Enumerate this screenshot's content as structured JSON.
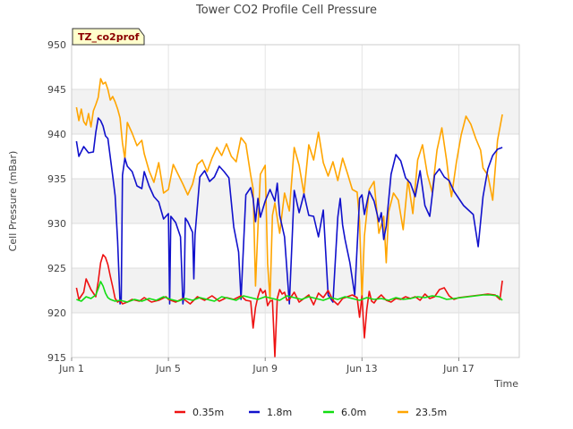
{
  "chart_data": {
    "type": "line",
    "title": "Tower CO2 Profile Cell Pressure",
    "xlabel": "Time",
    "ylabel": "Cell Pressure (mBar)",
    "ylim": [
      915,
      950
    ],
    "xlim": [
      0,
      18.5
    ],
    "yticks": [
      915,
      920,
      925,
      930,
      935,
      940,
      945,
      950
    ],
    "xticks": [
      {
        "x": 0,
        "label": "Jun 1"
      },
      {
        "x": 4,
        "label": "Jun 5"
      },
      {
        "x": 8,
        "label": "Jun 9"
      },
      {
        "x": 12,
        "label": "Jun 13"
      },
      {
        "x": 16,
        "label": "Jun 17"
      }
    ],
    "grid": true,
    "alternating_bands": true,
    "legend_position": "bottom",
    "badge": "TZ_co2prof",
    "series": [
      {
        "name": "0.35m",
        "color": "#ee1111",
        "x": [
          0.2,
          0.3,
          0.5,
          0.6,
          0.8,
          1.0,
          1.1,
          1.2,
          1.3,
          1.4,
          1.5,
          1.6,
          1.7,
          1.8,
          1.9,
          2.0,
          2.1,
          2.3,
          2.5,
          2.8,
          3.0,
          3.3,
          3.6,
          3.9,
          4.0,
          4.3,
          4.6,
          4.9,
          5.2,
          5.5,
          5.8,
          6.1,
          6.4,
          6.7,
          7.0,
          7.2,
          7.4,
          7.5,
          7.6,
          7.7,
          7.8,
          7.9,
          8.0,
          8.1,
          8.2,
          8.3,
          8.4,
          8.5,
          8.6,
          8.7,
          8.8,
          8.9,
          9.0,
          9.2,
          9.4,
          9.6,
          9.8,
          10.0,
          10.2,
          10.4,
          10.6,
          10.8,
          11.0,
          11.2,
          11.4,
          11.6,
          11.8,
          11.9,
          12.0,
          12.1,
          12.2,
          12.3,
          12.4,
          12.5,
          12.6,
          12.8,
          13.0,
          13.2,
          13.4,
          13.6,
          13.8,
          14.0,
          14.2,
          14.4,
          14.6,
          14.8,
          15.0,
          15.2,
          15.4,
          15.6,
          15.8,
          16.0,
          16.3,
          16.6,
          16.9,
          17.2,
          17.5,
          17.7,
          17.8
        ],
        "y": [
          922.8,
          921.5,
          922.3,
          923.8,
          922.6,
          921.8,
          923.5,
          925.6,
          926.5,
          926.2,
          925.4,
          924.1,
          922.9,
          921.6,
          921.2,
          921.4,
          921.0,
          921.2,
          921.5,
          921.3,
          921.7,
          921.2,
          921.4,
          921.8,
          921.5,
          921.2,
          921.6,
          921.0,
          921.8,
          921.4,
          921.9,
          921.3,
          921.7,
          921.5,
          921.9,
          921.4,
          921.3,
          918.3,
          920.6,
          921.8,
          922.7,
          922.2,
          922.5,
          920.8,
          921.3,
          921.4,
          915.1,
          921.6,
          922.6,
          922.1,
          922.3,
          921.4,
          921.5,
          922.3,
          921.2,
          921.6,
          922.0,
          920.9,
          922.2,
          921.7,
          922.5,
          921.4,
          920.9,
          921.6,
          921.8,
          922.0,
          921.7,
          919.5,
          921.9,
          917.2,
          920.4,
          922.4,
          921.3,
          921.1,
          921.5,
          922.0,
          921.4,
          921.2,
          921.6,
          921.5,
          921.8,
          921.6,
          921.8,
          921.4,
          922.1,
          921.6,
          921.8,
          922.6,
          922.8,
          921.9,
          921.5,
          921.7,
          921.8,
          921.9,
          922.0,
          922.1,
          922.0,
          921.5,
          923.6
        ]
      },
      {
        "name": "1.8m",
        "color": "#1111cc",
        "x": [
          0.2,
          0.3,
          0.5,
          0.7,
          0.9,
          1.0,
          1.1,
          1.2,
          1.3,
          1.4,
          1.5,
          1.6,
          1.7,
          1.8,
          1.9,
          2.0,
          2.05,
          2.1,
          2.2,
          2.3,
          2.5,
          2.7,
          2.9,
          3.0,
          3.2,
          3.4,
          3.6,
          3.8,
          3.9,
          4.0,
          4.05,
          4.1,
          4.3,
          4.5,
          4.6,
          4.65,
          4.7,
          4.8,
          5.0,
          5.05,
          5.1,
          5.3,
          5.5,
          5.7,
          5.9,
          6.1,
          6.3,
          6.5,
          6.7,
          6.9,
          7.0,
          7.2,
          7.4,
          7.5,
          7.6,
          7.7,
          7.8,
          8.0,
          8.2,
          8.4,
          8.5,
          8.6,
          8.8,
          9.0,
          9.2,
          9.4,
          9.6,
          9.8,
          10.0,
          10.2,
          10.4,
          10.6,
          10.8,
          11.0,
          11.1,
          11.2,
          11.3,
          11.5,
          11.7,
          11.9,
          12.0,
          12.1,
          12.3,
          12.5,
          12.7,
          12.8,
          12.9,
          13.0,
          13.2,
          13.4,
          13.6,
          13.8,
          14.0,
          14.2,
          14.4,
          14.6,
          14.8,
          15.0,
          15.2,
          15.4,
          15.6,
          15.8,
          16.0,
          16.2,
          16.4,
          16.6,
          16.8,
          17.0,
          17.2,
          17.4,
          17.6,
          17.8
        ],
        "y": [
          939.2,
          937.5,
          938.6,
          937.9,
          938.0,
          940.2,
          941.8,
          941.5,
          940.9,
          939.8,
          939.5,
          937.4,
          935.3,
          933.1,
          928.0,
          921.0,
          921.5,
          935.4,
          937.3,
          936.4,
          935.8,
          934.2,
          933.9,
          935.8,
          934.2,
          933.0,
          932.4,
          930.5,
          930.8,
          931.1,
          921.0,
          930.8,
          930.1,
          928.5,
          921.0,
          922.3,
          930.6,
          930.2,
          929.0,
          923.8,
          928.7,
          935.2,
          935.9,
          934.7,
          935.2,
          936.4,
          935.8,
          935.1,
          929.6,
          926.8,
          921.5,
          933.2,
          934.0,
          932.8,
          930.2,
          932.8,
          930.7,
          932.5,
          933.8,
          932.5,
          934.5,
          930.9,
          928.5,
          921.0,
          933.7,
          931.2,
          933.3,
          930.9,
          930.8,
          928.5,
          931.5,
          922.0,
          921.2,
          930.7,
          932.8,
          929.8,
          928.2,
          925.6,
          922.0,
          932.8,
          933.2,
          931.0,
          933.6,
          932.5,
          930.2,
          931.2,
          928.2,
          929.7,
          935.5,
          937.7,
          937.0,
          935.1,
          934.5,
          933.0,
          935.9,
          932.0,
          930.8,
          935.4,
          936.1,
          935.2,
          934.8,
          933.6,
          932.8,
          932.0,
          931.5,
          931.0,
          927.4,
          933.0,
          936.1,
          937.6,
          938.3,
          938.5
        ]
      },
      {
        "name": "6.0m",
        "color": "#11dd11",
        "x": [
          0.2,
          0.4,
          0.6,
          0.8,
          1.0,
          1.1,
          1.2,
          1.3,
          1.4,
          1.5,
          1.6,
          1.8,
          2.0,
          2.3,
          2.6,
          2.9,
          3.2,
          3.5,
          3.8,
          4.1,
          4.4,
          4.7,
          5.0,
          5.3,
          5.6,
          5.9,
          6.2,
          6.5,
          6.8,
          7.1,
          7.4,
          7.7,
          8.0,
          8.3,
          8.6,
          8.9,
          9.2,
          9.5,
          9.8,
          10.1,
          10.4,
          10.7,
          11.0,
          11.3,
          11.6,
          11.9,
          12.2,
          12.5,
          12.8,
          13.1,
          13.4,
          13.7,
          14.0,
          14.3,
          14.6,
          14.9,
          15.2,
          15.5,
          15.8,
          16.1,
          16.4,
          16.7,
          17.0,
          17.3,
          17.6,
          17.8
        ],
        "y": [
          921.5,
          921.3,
          921.8,
          921.6,
          922.0,
          922.7,
          923.5,
          923.0,
          922.2,
          921.7,
          921.5,
          921.3,
          921.4,
          921.2,
          921.5,
          921.3,
          921.6,
          921.4,
          921.8,
          921.5,
          921.3,
          921.6,
          921.4,
          921.7,
          921.5,
          921.3,
          921.8,
          921.6,
          921.4,
          921.9,
          921.7,
          921.5,
          921.8,
          921.6,
          921.4,
          921.9,
          921.7,
          921.5,
          921.8,
          921.6,
          921.4,
          921.7,
          921.5,
          921.8,
          921.6,
          921.4,
          921.7,
          921.5,
          921.6,
          921.4,
          921.7,
          921.5,
          921.6,
          921.8,
          921.7,
          921.9,
          921.8,
          921.5,
          921.6,
          921.7,
          921.8,
          921.9,
          922.0,
          922.0,
          921.9,
          921.4
        ]
      },
      {
        "name": "23.5m",
        "color": "#ffa500",
        "x": [
          0.2,
          0.3,
          0.4,
          0.5,
          0.6,
          0.7,
          0.8,
          0.9,
          1.0,
          1.1,
          1.2,
          1.3,
          1.4,
          1.5,
          1.6,
          1.7,
          1.8,
          1.9,
          2.0,
          2.1,
          2.2,
          2.3,
          2.5,
          2.7,
          2.9,
          3.0,
          3.2,
          3.4,
          3.6,
          3.8,
          4.0,
          4.2,
          4.4,
          4.6,
          4.8,
          5.0,
          5.2,
          5.4,
          5.6,
          5.8,
          6.0,
          6.2,
          6.4,
          6.6,
          6.8,
          7.0,
          7.2,
          7.4,
          7.5,
          7.6,
          7.7,
          7.8,
          8.0,
          8.1,
          8.2,
          8.3,
          8.4,
          8.6,
          8.8,
          9.0,
          9.2,
          9.4,
          9.6,
          9.8,
          10.0,
          10.2,
          10.4,
          10.6,
          10.8,
          11.0,
          11.2,
          11.4,
          11.6,
          11.8,
          11.9,
          12.0,
          12.1,
          12.3,
          12.5,
          12.7,
          12.9,
          13.0,
          13.1,
          13.3,
          13.5,
          13.7,
          13.9,
          14.1,
          14.3,
          14.5,
          14.7,
          14.9,
          15.1,
          15.3,
          15.5,
          15.6,
          15.7,
          15.9,
          16.1,
          16.3,
          16.5,
          16.7,
          16.9,
          17.0,
          17.2,
          17.4,
          17.6,
          17.8
        ],
        "y": [
          943.0,
          941.5,
          942.8,
          941.4,
          941.0,
          942.3,
          940.8,
          942.6,
          943.3,
          944.1,
          946.2,
          945.6,
          945.8,
          945.0,
          943.8,
          944.2,
          943.6,
          942.8,
          941.8,
          939.0,
          937.2,
          941.3,
          940.1,
          938.7,
          939.3,
          937.8,
          935.9,
          934.6,
          936.8,
          933.4,
          933.8,
          936.6,
          935.5,
          934.4,
          933.2,
          934.4,
          936.6,
          937.1,
          935.8,
          937.3,
          938.5,
          937.6,
          938.9,
          937.5,
          936.9,
          939.6,
          938.9,
          935.4,
          933.9,
          923.0,
          929.5,
          935.5,
          936.5,
          925.5,
          921.5,
          930.9,
          932.3,
          928.9,
          933.4,
          931.4,
          938.5,
          936.5,
          933.3,
          938.8,
          937.1,
          940.2,
          936.8,
          935.3,
          936.9,
          934.8,
          937.3,
          935.6,
          933.8,
          933.5,
          930.2,
          921.5,
          928.6,
          933.8,
          934.7,
          928.9,
          930.8,
          925.6,
          931.3,
          933.4,
          932.6,
          929.3,
          934.9,
          931.1,
          937.1,
          938.8,
          935.5,
          933.5,
          938.2,
          940.7,
          937.0,
          934.7,
          933.0,
          936.8,
          939.9,
          942.0,
          941.1,
          939.5,
          938.2,
          936.2,
          935.4,
          932.6,
          939.3,
          942.2
        ]
      }
    ]
  }
}
